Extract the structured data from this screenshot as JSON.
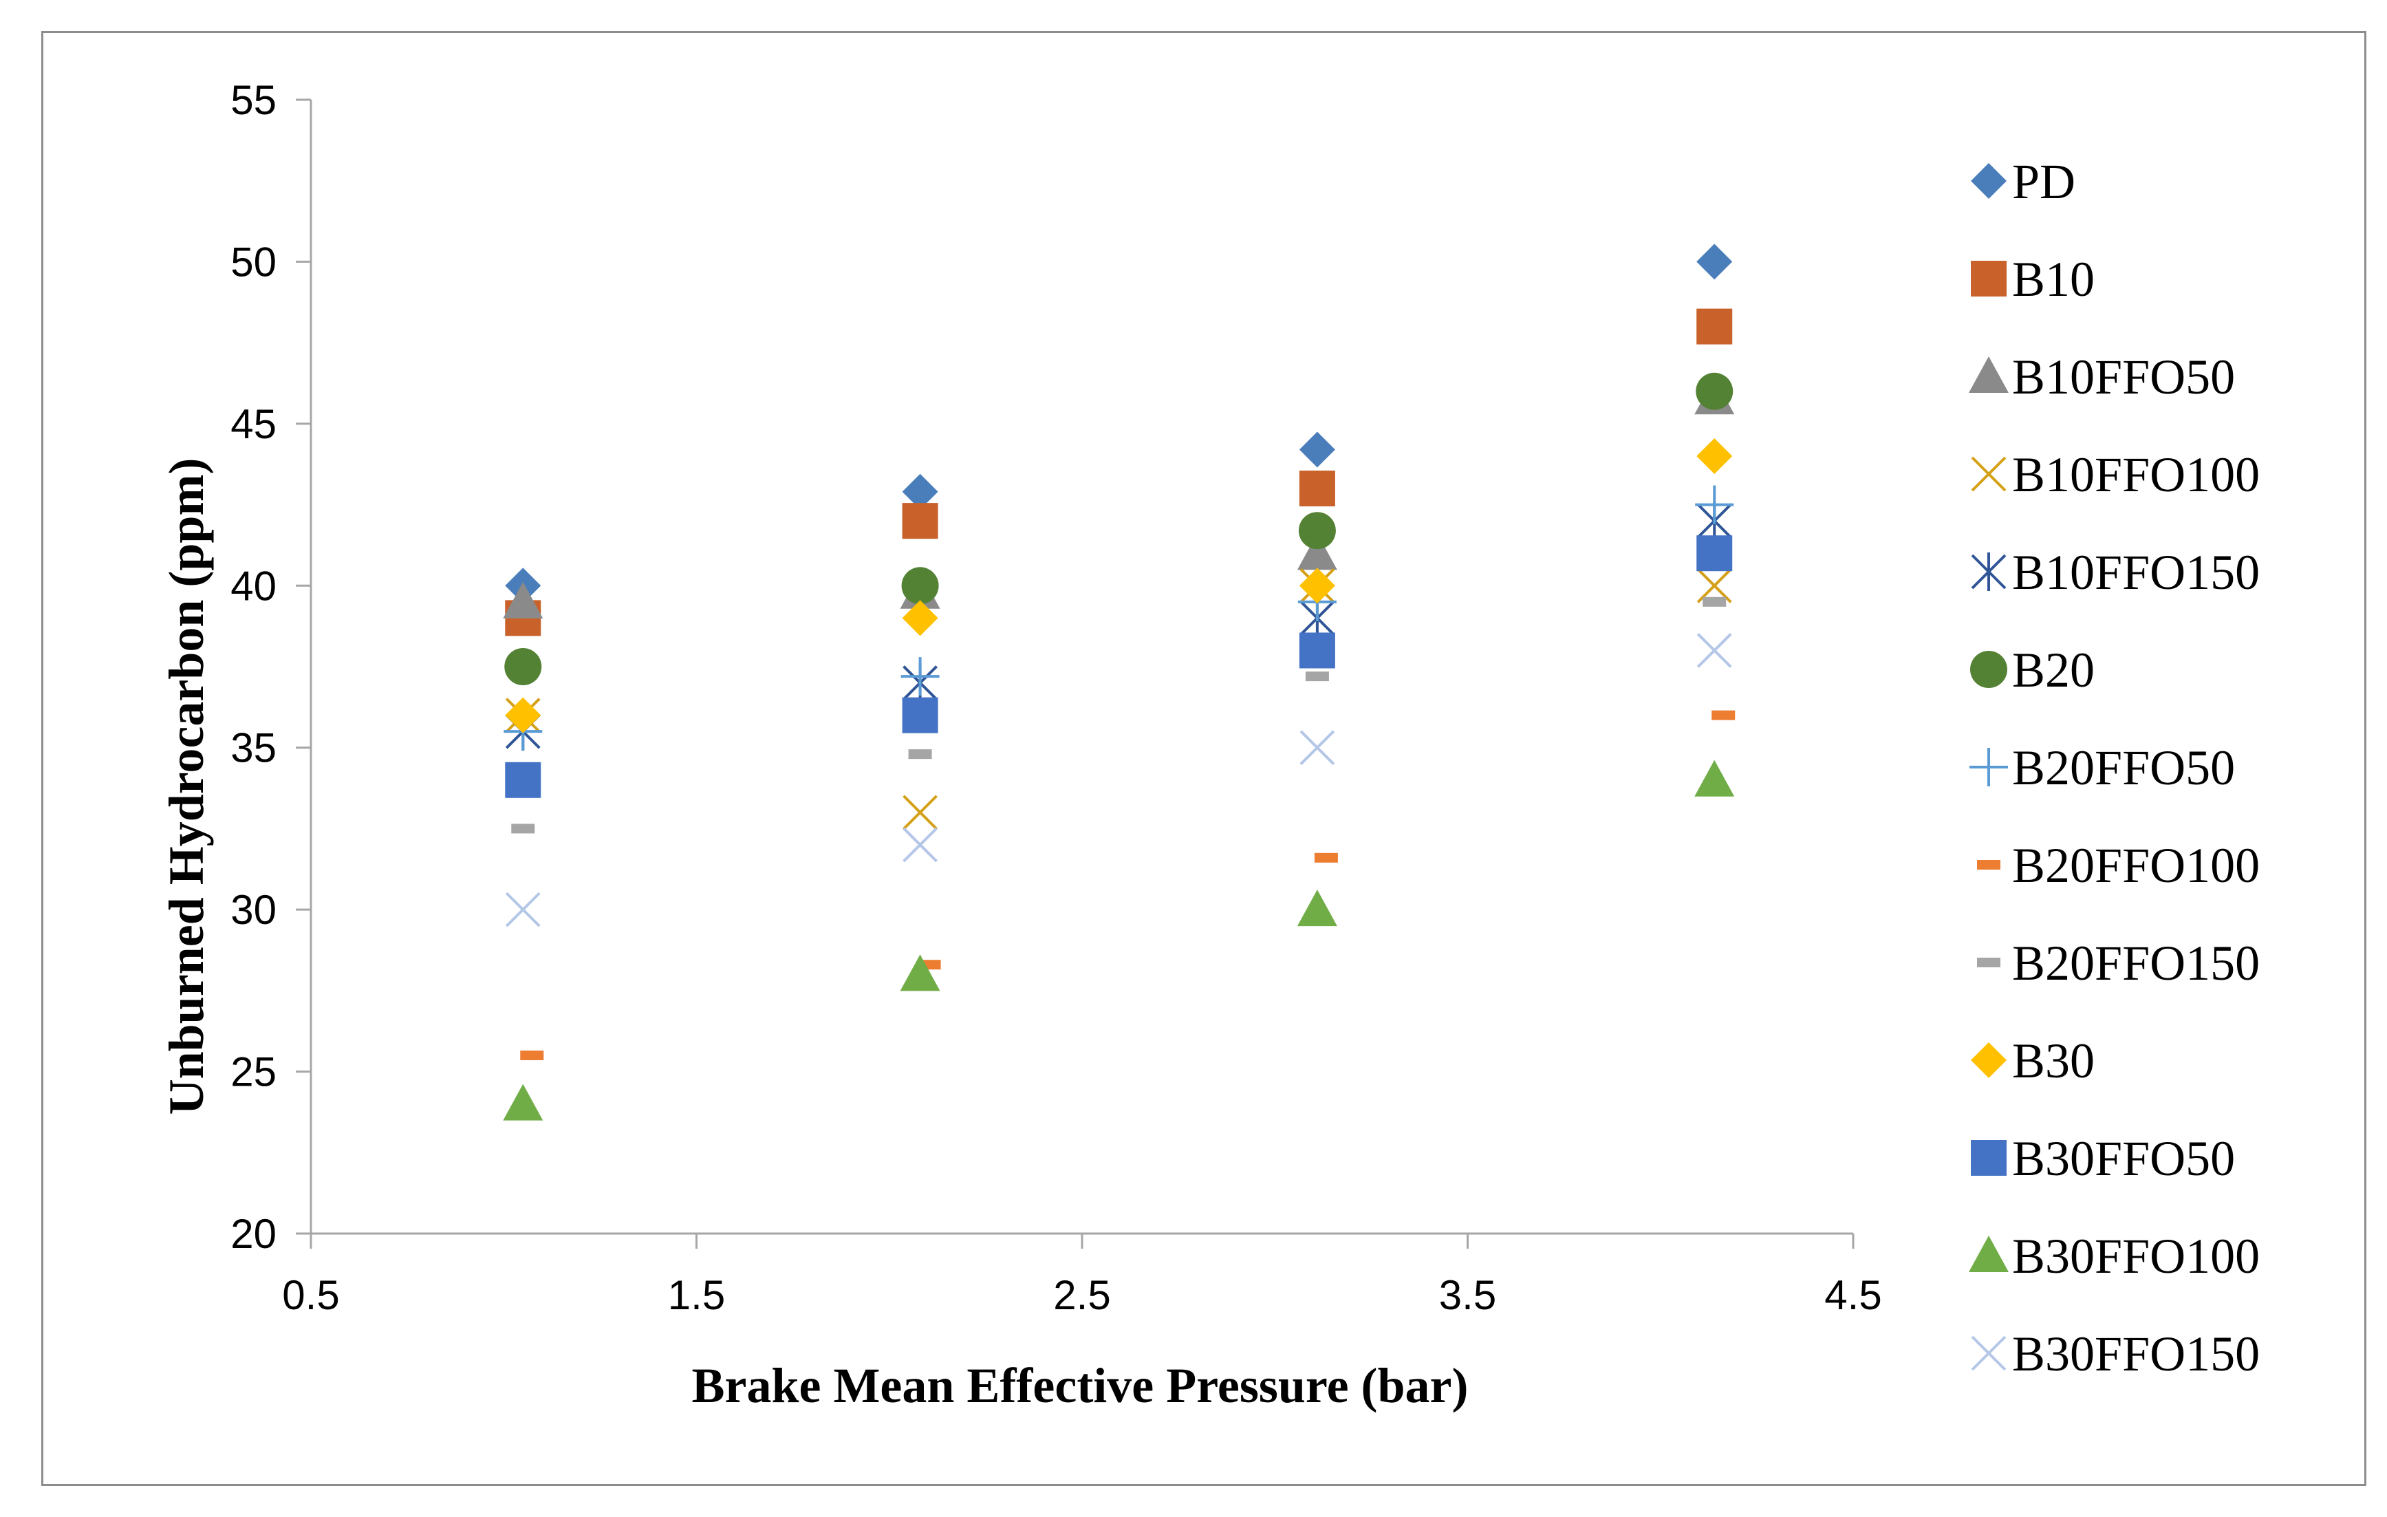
{
  "chart_data": {
    "type": "scatter",
    "title": "",
    "xlabel": "Brake Mean Effective Pressure (bar)",
    "ylabel": "Unburned Hydrocarbon (ppm)",
    "xlim": [
      0.5,
      4.5
    ],
    "ylim": [
      20,
      55
    ],
    "xticks": [
      "0.5",
      "1.5",
      "2.5",
      "3.5",
      "4.5"
    ],
    "yticks": [
      "20",
      "25",
      "30",
      "35",
      "40",
      "45",
      "50",
      "55"
    ],
    "grid": false,
    "legend_position": "right",
    "x": [
      1.05,
      2.08,
      3.11,
      4.14
    ],
    "series": [
      {
        "name": "PD",
        "marker": "diamond",
        "color": "#4a7ebb",
        "values": [
          40,
          42.9,
          44.2,
          50
        ]
      },
      {
        "name": "B10",
        "marker": "square",
        "color": "#c8622a",
        "values": [
          39,
          42,
          43,
          48
        ]
      },
      {
        "name": "B10FFO50",
        "marker": "triangle",
        "color": "#8a8a8a",
        "values": [
          39.5,
          39.8,
          41,
          45.8
        ]
      },
      {
        "name": "B10FFO100",
        "marker": "x",
        "color": "#d4a017",
        "values": [
          36,
          33,
          40,
          40
        ]
      },
      {
        "name": "B10FFO150",
        "marker": "star",
        "color": "#2f5597",
        "values": [
          35.5,
          37,
          39,
          42
        ]
      },
      {
        "name": "B20",
        "marker": "circle",
        "color": "#548235",
        "values": [
          37.5,
          40,
          41.7,
          46
        ]
      },
      {
        "name": "B20FFO50",
        "marker": "plus",
        "color": "#5b9bd5",
        "values": [
          35.5,
          37.2,
          39.5,
          42.5
        ]
      },
      {
        "name": "B20FFO100",
        "marker": "dash",
        "color": "#ed7d31",
        "values": [
          25.5,
          28.3,
          31.6,
          36
        ]
      },
      {
        "name": "B20FFO150",
        "marker": "dash",
        "color": "#a5a5a5",
        "values": [
          32.5,
          34.8,
          37.2,
          39.5
        ]
      },
      {
        "name": "B30",
        "marker": "diamond",
        "color": "#ffc000",
        "values": [
          36,
          39,
          40,
          44
        ]
      },
      {
        "name": "B30FFO50",
        "marker": "square",
        "color": "#4472c4",
        "values": [
          34,
          36,
          38,
          41
        ]
      },
      {
        "name": "B30FFO100",
        "marker": "triangle",
        "color": "#70ad47",
        "values": [
          24,
          28,
          30,
          34
        ]
      },
      {
        "name": "B30FFO150",
        "marker": "x",
        "color": "#b4c7e7",
        "values": [
          30,
          32,
          35,
          38
        ]
      }
    ]
  }
}
